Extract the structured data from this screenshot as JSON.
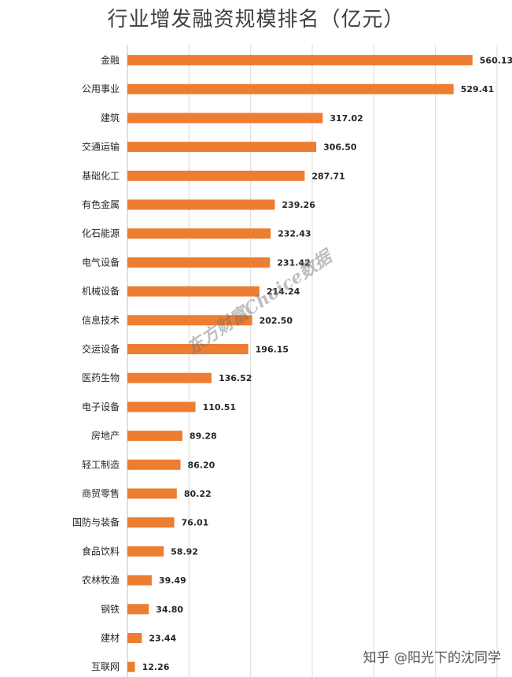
{
  "chart_data": {
    "type": "bar",
    "orientation": "horizontal",
    "title": "行业增发融资规模排名（亿元）",
    "categories": [
      "金融",
      "公用事业",
      "建筑",
      "交通运输",
      "基础化工",
      "有色金属",
      "化石能源",
      "电气设备",
      "机械设备",
      "信息技术",
      "交运设备",
      "医药生物",
      "电子设备",
      "房地产",
      "轻工制造",
      "商贸零售",
      "国防与装备",
      "食品饮料",
      "农林牧渔",
      "钢铁",
      "建材",
      "互联网"
    ],
    "values": [
      560.13,
      529.41,
      317.02,
      306.5,
      287.71,
      239.26,
      232.43,
      231.42,
      214.24,
      202.5,
      196.15,
      136.52,
      110.51,
      89.28,
      86.2,
      80.22,
      76.01,
      58.92,
      39.49,
      34.8,
      23.44,
      12.26
    ],
    "value_labels": [
      "560.13",
      "529.41",
      "317.02",
      "306.50",
      "287.71",
      "239.26",
      "232.43",
      "231.42",
      "214.24",
      "202.50",
      "196.15",
      "136.52",
      "110.51",
      "89.28",
      "86.20",
      "80.22",
      "76.01",
      "58.92",
      "39.49",
      "34.80",
      "23.44",
      "12.26"
    ],
    "xlim": [
      0,
      600
    ],
    "grid": true,
    "bar_color": "#ED7D31",
    "grid_color": "#D9D9D9"
  },
  "watermark": "东方财富Choice数据",
  "credit": "知乎 @阳光下的沈同学"
}
